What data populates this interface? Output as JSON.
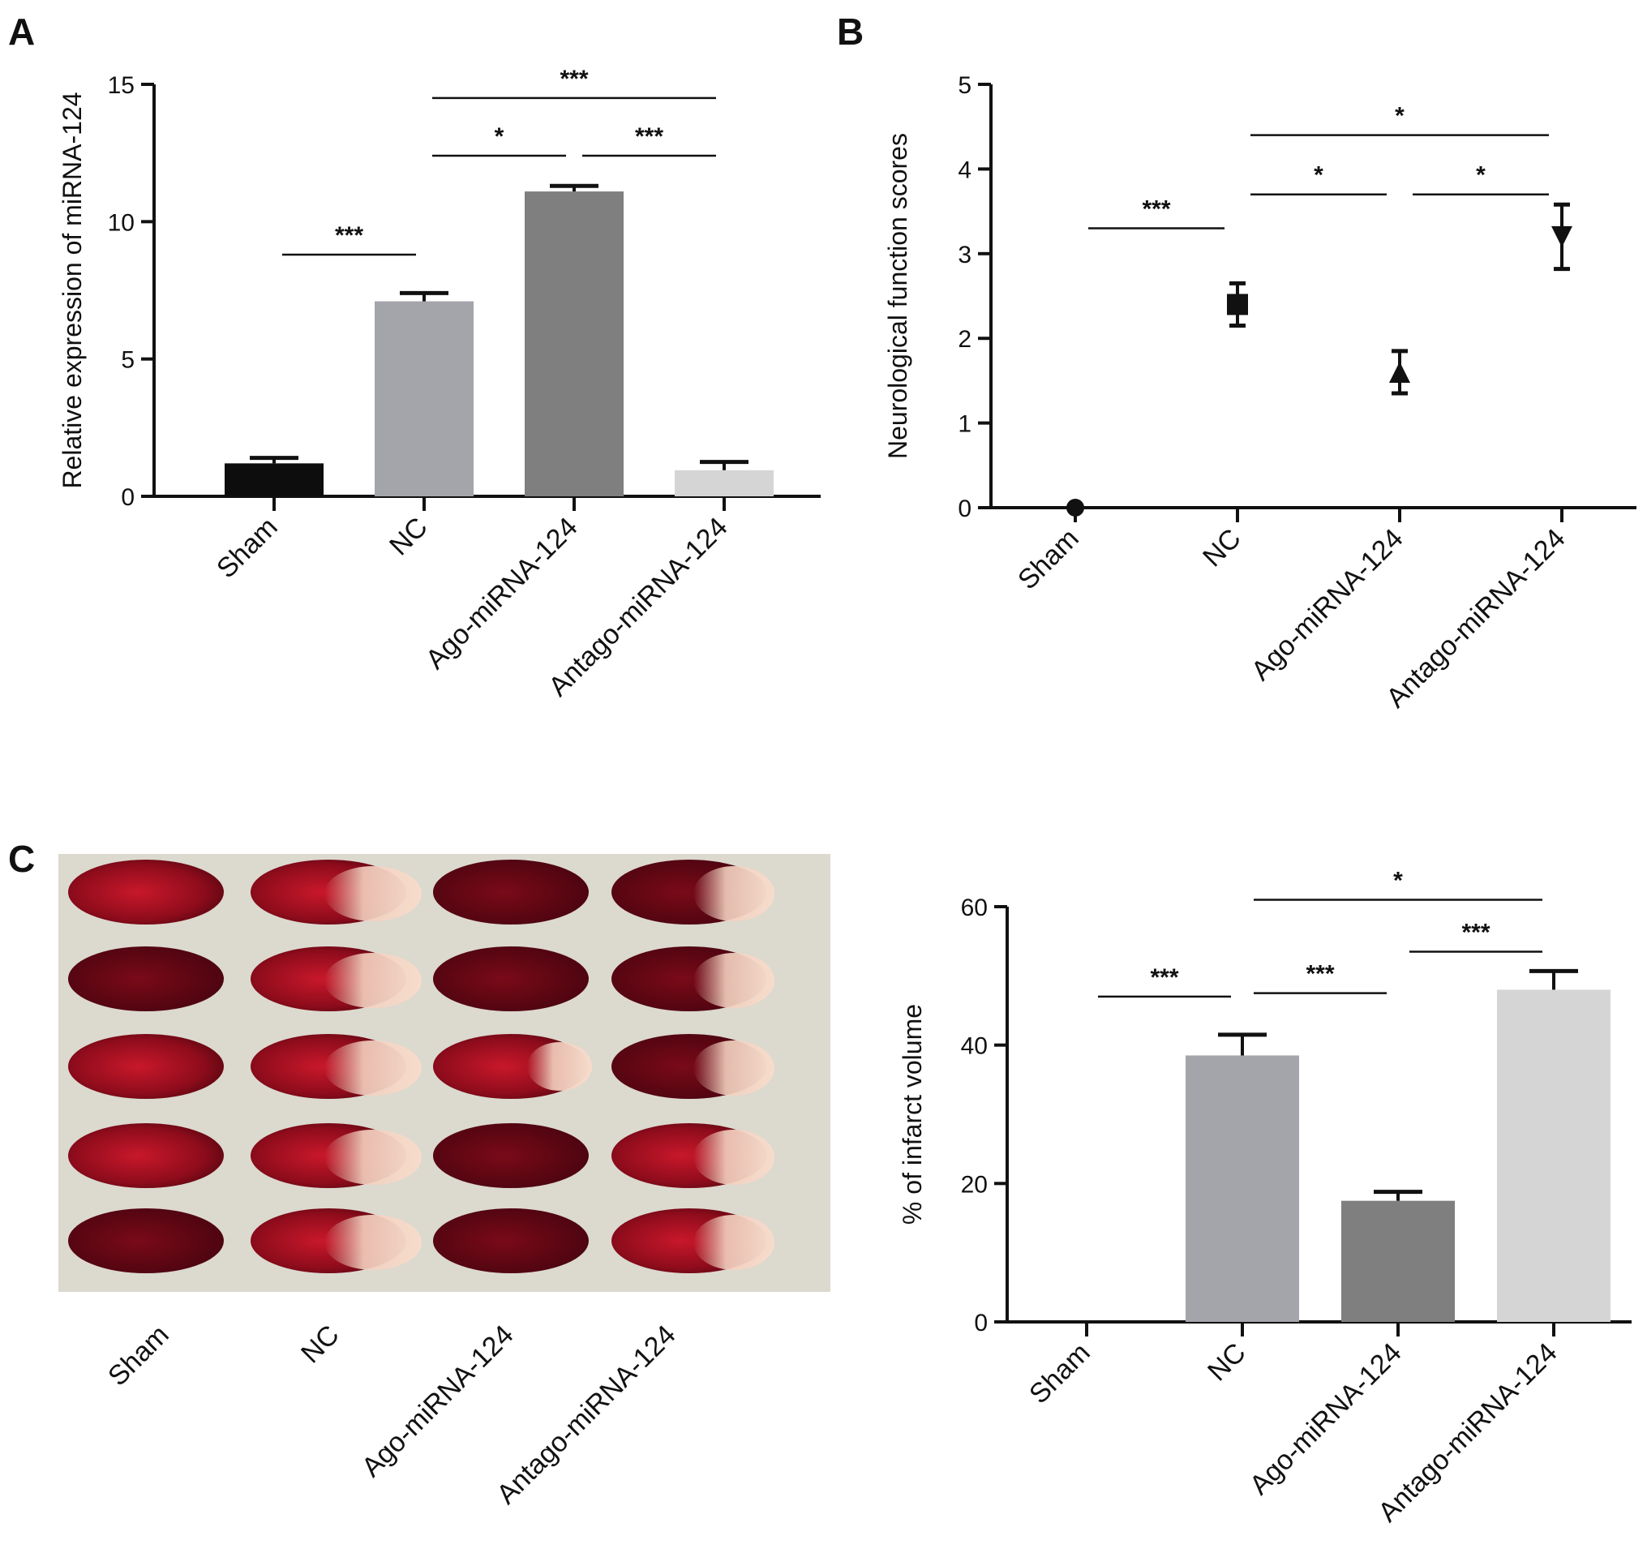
{
  "panels": {
    "A": {
      "letter": "A",
      "chart_data": {
        "type": "bar",
        "categories": [
          "Sham",
          "NC",
          "Ago-miRNA-124",
          "Antago-miRNA-124"
        ],
        "values": [
          1.2,
          7.1,
          11.1,
          0.95
        ],
        "errors": [
          0.2,
          0.3,
          0.2,
          0.3
        ],
        "colors": [
          "#0d0d0d",
          "#a4a4ab",
          "#7f7f7f",
          "#d5d5d5"
        ],
        "ylabel": "Relative expression of miRNA-124",
        "ylim": [
          0,
          15
        ],
        "yticks": [
          0,
          5,
          10,
          15
        ],
        "significance": [
          {
            "from": 0,
            "to": 1,
            "y": 8.8,
            "label": "***"
          },
          {
            "from": 1,
            "to": 2,
            "y": 12.4,
            "label": "*"
          },
          {
            "from": 2,
            "to": 3,
            "y": 12.4,
            "label": "***"
          },
          {
            "from": 1,
            "to": 3,
            "y": 14.5,
            "label": "***"
          }
        ]
      }
    },
    "B": {
      "letter": "B",
      "chart_data": {
        "type": "scatter",
        "categories": [
          "Sham",
          "NC",
          "Ago-miRNA-124",
          "Antago-miRNA-124"
        ],
        "values": [
          0,
          2.4,
          1.6,
          3.2
        ],
        "errors": [
          0,
          0.25,
          0.25,
          0.38
        ],
        "markers": [
          "circle",
          "square",
          "triangle-up",
          "triangle-down"
        ],
        "ylabel": "Neurological function scores",
        "ylim": [
          0,
          5
        ],
        "yticks": [
          0,
          1,
          2,
          3,
          4,
          5
        ],
        "significance": [
          {
            "from": 0,
            "to": 1,
            "y": 3.3,
            "label": "***"
          },
          {
            "from": 1,
            "to": 2,
            "y": 3.7,
            "label": "*"
          },
          {
            "from": 2,
            "to": 3,
            "y": 3.7,
            "label": "*"
          },
          {
            "from": 1,
            "to": 3,
            "y": 4.4,
            "label": "*"
          }
        ]
      }
    },
    "C": {
      "letter": "C",
      "photo_labels": [
        "Sham",
        "NC",
        "Ago-miRNA-124",
        "Antago-miRNA-124"
      ],
      "chart_data": {
        "type": "bar",
        "categories": [
          "Sham",
          "NC",
          "Ago-miRNA-124",
          "Antago-miRNA-124"
        ],
        "values": [
          0,
          38.5,
          17.5,
          48
        ],
        "errors": [
          0,
          3,
          1.3,
          2.7
        ],
        "colors": [
          "#ffffff",
          "#a4a4ab",
          "#7f7f7f",
          "#d5d5d5"
        ],
        "ylabel": "% of infarct volume",
        "ylim": [
          0,
          60
        ],
        "yticks": [
          0,
          20,
          40,
          60
        ],
        "significance": [
          {
            "from": 0,
            "to": 1,
            "y": 47,
            "label": "***"
          },
          {
            "from": 1,
            "to": 2,
            "y": 47.5,
            "label": "***"
          },
          {
            "from": 2,
            "to": 3,
            "y": 53.5,
            "label": "***"
          },
          {
            "from": 1,
            "to": 3,
            "y": 61,
            "label": "*"
          }
        ]
      }
    }
  }
}
